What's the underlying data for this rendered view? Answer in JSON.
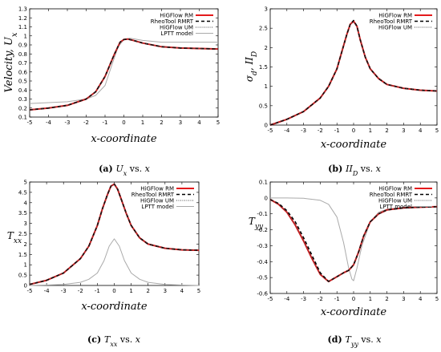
{
  "legend_names": [
    "HiGFlow RM",
    "RheoTool RMRT",
    "HiGFlow UM",
    "LPTT model"
  ],
  "series_colors": [
    "#e41a1c",
    "#000000",
    "#444444",
    "#aaaaaa"
  ],
  "chart_data": [
    {
      "id": "a",
      "type": "line",
      "caption": {
        "letter": "(a)",
        "math": "U",
        "sub": "x",
        "rest": "vs.",
        "var": "x"
      },
      "ylabel": {
        "main": "Velocity, U",
        "sub": "x"
      },
      "xlabel": "x-coordinate",
      "xlim": [
        -5,
        5
      ],
      "ylim": [
        0.1,
        1.3
      ],
      "xticks": [
        "-5",
        "-4",
        "-3",
        "-2",
        "-1",
        "0",
        "1",
        "2",
        "3",
        "4",
        "5"
      ],
      "yticks": [
        "0.1",
        "0.2",
        "0.3",
        "0.4",
        "0.5",
        "0.6",
        "0.7",
        "0.8",
        "0.9",
        "1",
        "1.1",
        "1.2",
        "1.3"
      ],
      "legend": [
        "HiGFlow RM",
        "RheoTool RMRT",
        "HiGFlow UM",
        "LPTT model"
      ],
      "legend_position": "top-right",
      "series": [
        {
          "name": "HiGFlow RM",
          "x": [
            -5,
            -4,
            -3,
            -2,
            -1.5,
            -1,
            -0.5,
            -0.2,
            0,
            0.2,
            0.5,
            1,
            2,
            3,
            4,
            5
          ],
          "y": [
            0.18,
            0.2,
            0.23,
            0.3,
            0.38,
            0.55,
            0.8,
            0.93,
            0.96,
            0.965,
            0.95,
            0.92,
            0.88,
            0.865,
            0.86,
            0.855
          ]
        },
        {
          "name": "RheoTool RMRT",
          "x": [
            -5,
            -4,
            -3,
            -2,
            -1.5,
            -1,
            -0.5,
            -0.2,
            0,
            0.2,
            0.5,
            1,
            2,
            3,
            4,
            5
          ],
          "y": [
            0.18,
            0.2,
            0.23,
            0.3,
            0.38,
            0.55,
            0.8,
            0.93,
            0.96,
            0.965,
            0.95,
            0.92,
            0.88,
            0.865,
            0.86,
            0.855
          ]
        },
        {
          "name": "HiGFlow UM",
          "x": [
            -5,
            -4,
            -3,
            -2,
            -1.5,
            -1,
            -0.5,
            -0.2,
            0,
            0.2,
            0.5,
            1,
            2,
            3,
            4,
            5
          ],
          "y": [
            0.18,
            0.2,
            0.23,
            0.3,
            0.38,
            0.55,
            0.8,
            0.93,
            0.96,
            0.965,
            0.95,
            0.92,
            0.88,
            0.865,
            0.86,
            0.855
          ]
        },
        {
          "name": "LPTT model",
          "x": [
            -5,
            -4,
            -3,
            -2,
            -1.5,
            -1,
            -0.6,
            -0.3,
            0,
            0.3,
            0.6,
            1,
            2,
            3,
            4,
            5
          ],
          "y": [
            0.25,
            0.26,
            0.27,
            0.3,
            0.34,
            0.45,
            0.7,
            0.88,
            0.96,
            0.975,
            0.965,
            0.95,
            0.93,
            0.93,
            0.93,
            0.93
          ]
        }
      ]
    },
    {
      "id": "b",
      "type": "line",
      "caption": {
        "letter": "(b)",
        "math": "II",
        "sub": "D",
        "rest": "vs.",
        "var": "x"
      },
      "ylabel": {
        "main": "σ",
        "sub": "d",
        "tail": ", II",
        "sub2": "D"
      },
      "xlabel": "x-coordinate",
      "xlim": [
        -5,
        5
      ],
      "ylim": [
        0,
        3
      ],
      "xticks": [
        "-5",
        "-4",
        "-3",
        "-2",
        "-1",
        "0",
        "1",
        "2",
        "3",
        "4",
        "5"
      ],
      "yticks": [
        "0",
        "0.5",
        "1",
        "1.5",
        "2",
        "2.5",
        "3"
      ],
      "legend": [
        "HiGFlow RM",
        "RheoTool RMRT",
        "HiGFlow UM"
      ],
      "legend_position": "top-right",
      "series": [
        {
          "name": "HiGFlow RM",
          "x": [
            -5,
            -4,
            -3,
            -2,
            -1.5,
            -1,
            -0.7,
            -0.4,
            -0.2,
            0,
            0.2,
            0.4,
            0.7,
            1,
            1.5,
            2,
            3,
            4,
            5
          ],
          "y": [
            0,
            0.15,
            0.35,
            0.7,
            1.0,
            1.45,
            1.9,
            2.35,
            2.6,
            2.68,
            2.55,
            2.2,
            1.75,
            1.45,
            1.2,
            1.05,
            0.95,
            0.9,
            0.88
          ]
        },
        {
          "name": "RheoTool RMRT",
          "x": [
            -5,
            -4,
            -3,
            -2,
            -1.5,
            -1,
            -0.7,
            -0.4,
            -0.2,
            0,
            0.2,
            0.4,
            0.7,
            1,
            1.5,
            2,
            3,
            4,
            5
          ],
          "y": [
            0,
            0.15,
            0.35,
            0.7,
            1.0,
            1.45,
            1.9,
            2.35,
            2.6,
            2.7,
            2.55,
            2.2,
            1.75,
            1.45,
            1.2,
            1.05,
            0.95,
            0.9,
            0.88
          ]
        },
        {
          "name": "HiGFlow UM",
          "x": [
            -5,
            -4,
            -3,
            -2,
            -1.5,
            -1,
            -0.7,
            -0.4,
            -0.2,
            0,
            0.2,
            0.4,
            0.7,
            1,
            1.5,
            2,
            3,
            4,
            5
          ],
          "y": [
            0,
            0.15,
            0.35,
            0.7,
            1.0,
            1.45,
            1.9,
            2.35,
            2.6,
            2.66,
            2.55,
            2.2,
            1.75,
            1.45,
            1.2,
            1.05,
            0.95,
            0.9,
            0.88
          ]
        }
      ]
    },
    {
      "id": "c",
      "type": "line",
      "caption": {
        "letter": "(c)",
        "math": "T",
        "sub": "xx",
        "rest": "vs.",
        "var": "x"
      },
      "ylabel": {
        "main": "T",
        "sub": "xx"
      },
      "xlabel": "x-coordinate",
      "xlim": [
        -5,
        5
      ],
      "ylim": [
        0,
        5
      ],
      "xticks": [
        "-5",
        "-4",
        "-3",
        "-2",
        "-1",
        "0",
        "1",
        "2",
        "3",
        "4",
        "5"
      ],
      "yticks": [
        "0",
        "0.5",
        "1",
        "1.5",
        "2",
        "2.5",
        "3",
        "3.5",
        "4",
        "4.5",
        "5"
      ],
      "legend": [
        "HiGFlow RM",
        "RheoTool RMRT",
        "HiGFlow UM",
        "LPTT model"
      ],
      "legend_position": "top-right",
      "series": [
        {
          "name": "HiGFlow RM",
          "x": [
            -5,
            -4,
            -3,
            -2,
            -1.5,
            -1,
            -0.7,
            -0.4,
            -0.2,
            0,
            0.2,
            0.4,
            0.7,
            1,
            1.5,
            2,
            3,
            4,
            5
          ],
          "y": [
            0.05,
            0.25,
            0.6,
            1.3,
            1.9,
            2.9,
            3.7,
            4.4,
            4.8,
            4.9,
            4.65,
            4.2,
            3.5,
            2.9,
            2.3,
            2.0,
            1.8,
            1.72,
            1.7
          ]
        },
        {
          "name": "RheoTool RMRT",
          "x": [
            -5,
            -4,
            -3,
            -2,
            -1.5,
            -1,
            -0.7,
            -0.4,
            -0.2,
            0,
            0.2,
            0.4,
            0.7,
            1,
            1.5,
            2,
            3,
            4,
            5
          ],
          "y": [
            0.05,
            0.25,
            0.6,
            1.3,
            1.9,
            2.9,
            3.7,
            4.4,
            4.8,
            4.9,
            4.65,
            4.2,
            3.5,
            2.9,
            2.3,
            2.0,
            1.8,
            1.72,
            1.7
          ]
        },
        {
          "name": "HiGFlow UM",
          "x": [
            -5,
            -4,
            -3,
            -2,
            -1.5,
            -1,
            -0.7,
            -0.4,
            -0.2,
            0,
            0.2,
            0.4,
            0.7,
            1,
            1.5,
            2,
            3,
            4,
            5
          ],
          "y": [
            0.05,
            0.25,
            0.6,
            1.3,
            1.9,
            2.9,
            3.7,
            4.4,
            4.8,
            4.9,
            4.65,
            4.2,
            3.5,
            2.9,
            2.3,
            2.0,
            1.8,
            1.72,
            1.7
          ]
        },
        {
          "name": "LPTT model",
          "x": [
            -5,
            -4,
            -3,
            -2,
            -1.5,
            -1,
            -0.6,
            -0.3,
            0,
            0.3,
            0.6,
            1,
            1.5,
            2,
            3,
            4,
            5
          ],
          "y": [
            0,
            0.02,
            0.05,
            0.15,
            0.3,
            0.6,
            1.2,
            1.9,
            2.25,
            1.9,
            1.2,
            0.6,
            0.3,
            0.15,
            0.05,
            0.02,
            0
          ]
        }
      ]
    },
    {
      "id": "d",
      "type": "line",
      "caption": {
        "letter": "(d)",
        "math": "T",
        "sub": "yy",
        "rest": "vs.",
        "var": "x"
      },
      "ylabel": {
        "main": "T",
        "sub": "yy"
      },
      "xlabel": "x-coordinate",
      "xlim": [
        -5,
        5
      ],
      "ylim": [
        -0.6,
        0.1
      ],
      "xticks": [
        "-5",
        "-4",
        "-3",
        "-2",
        "-1",
        "0",
        "1",
        "2",
        "3",
        "4",
        "5"
      ],
      "yticks": [
        "-0.6",
        "-0.5",
        "-0.4",
        "-0.3",
        "-0.2",
        "-0.1",
        "0",
        "0.1"
      ],
      "legend": [
        "HiGFlow RM",
        "RheoTool RMRT",
        "HiGFlow UM",
        "LPTT model"
      ],
      "legend_position": "top-right",
      "series": [
        {
          "name": "HiGFlow RM",
          "x": [
            -5,
            -4.5,
            -4,
            -3.5,
            -3,
            -2.5,
            -2,
            -1.5,
            -1,
            -0.6,
            -0.3,
            0,
            0.3,
            0.6,
            1,
            1.5,
            2,
            3,
            4,
            5
          ],
          "y": [
            -0.01,
            -0.04,
            -0.09,
            -0.17,
            -0.27,
            -0.38,
            -0.48,
            -0.525,
            -0.495,
            -0.47,
            -0.455,
            -0.42,
            -0.34,
            -0.24,
            -0.15,
            -0.1,
            -0.075,
            -0.062,
            -0.058,
            -0.055
          ]
        },
        {
          "name": "RheoTool RMRT",
          "x": [
            -5,
            -4.5,
            -4,
            -3.5,
            -3,
            -2.5,
            -2,
            -1.5,
            -1,
            -0.6,
            -0.3,
            0,
            0.3,
            0.6,
            1,
            1.5,
            2,
            3,
            4,
            5
          ],
          "y": [
            -0.01,
            -0.035,
            -0.08,
            -0.15,
            -0.25,
            -0.36,
            -0.47,
            -0.525,
            -0.495,
            -0.47,
            -0.455,
            -0.42,
            -0.34,
            -0.24,
            -0.15,
            -0.1,
            -0.075,
            -0.062,
            -0.058,
            -0.055
          ]
        },
        {
          "name": "HiGFlow UM",
          "x": [
            -5,
            -4.5,
            -4,
            -3.5,
            -3,
            -2.5,
            -2,
            -1.5,
            -1,
            -0.6,
            -0.3,
            0,
            0.3,
            0.6,
            1,
            1.5,
            2,
            3,
            4,
            5
          ],
          "y": [
            -0.01,
            -0.04,
            -0.09,
            -0.17,
            -0.27,
            -0.38,
            -0.48,
            -0.525,
            -0.495,
            -0.47,
            -0.455,
            -0.42,
            -0.34,
            -0.24,
            -0.15,
            -0.1,
            -0.075,
            -0.062,
            -0.058,
            -0.055
          ]
        },
        {
          "name": "LPTT model",
          "x": [
            -5,
            -4,
            -3,
            -2,
            -1.5,
            -1,
            -0.6,
            -0.3,
            -0.1,
            0,
            0.2,
            0.5,
            1,
            1.5,
            2,
            3,
            4,
            5
          ],
          "y": [
            0,
            0,
            -0.002,
            -0.015,
            -0.04,
            -0.12,
            -0.28,
            -0.44,
            -0.51,
            -0.52,
            -0.44,
            -0.3,
            -0.15,
            -0.09,
            -0.07,
            -0.06,
            -0.055,
            -0.055
          ]
        }
      ]
    }
  ]
}
